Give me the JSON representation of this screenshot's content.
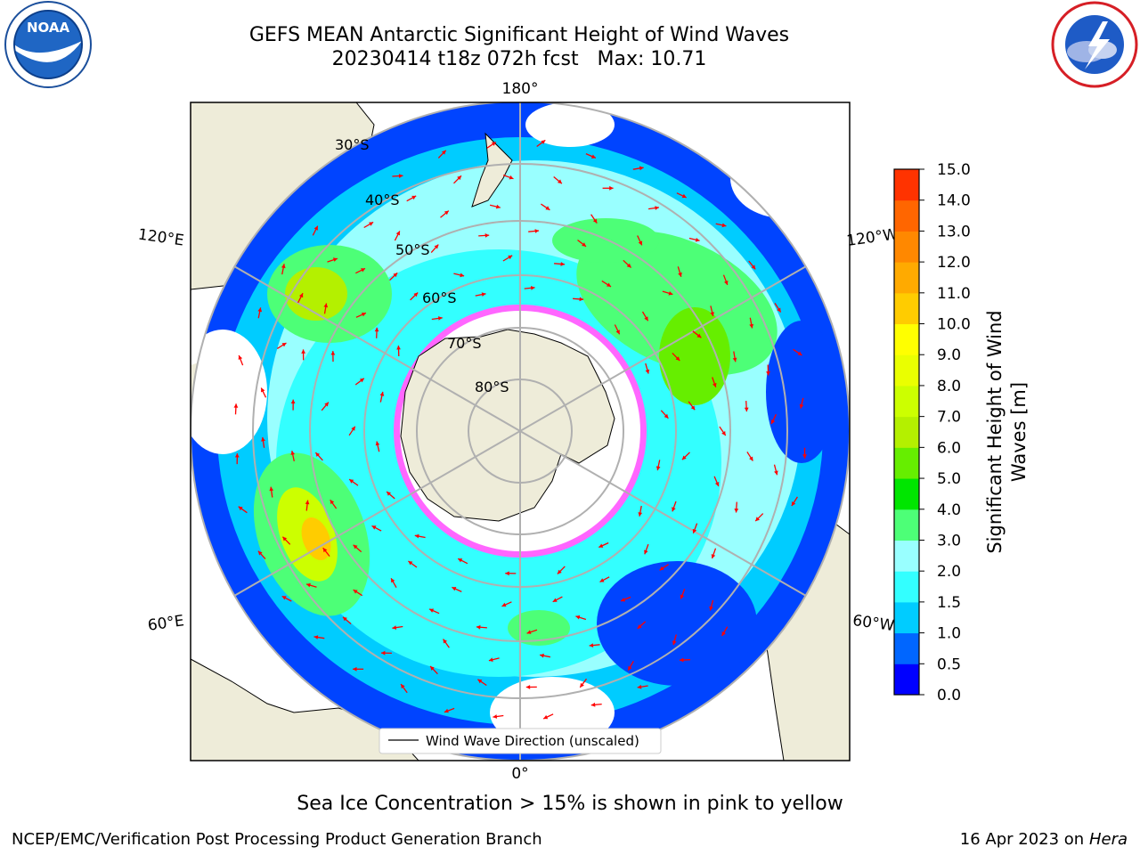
{
  "title": {
    "line1": "GEFS MEAN Antarctic Significant Height of Wind Waves",
    "line2": "20230414 t18z 072h fcst   Max: 10.71"
  },
  "logos": {
    "noaa": {
      "text": "NOAA",
      "icon": "noaa-logo-icon"
    },
    "nws": {
      "icon": "national-weather-service-logo-icon"
    }
  },
  "map": {
    "projection": "south-polar-stereographic",
    "longitude_labels": [
      "180°",
      "120°E",
      "120°W",
      "60°E",
      "60°W",
      "0°"
    ],
    "latitude_labels": [
      "30°S",
      "40°S",
      "50°S",
      "60°S",
      "70°S",
      "80°S"
    ],
    "legend_label": "Wind Wave Direction (unscaled)",
    "colors": {
      "land": "#eeecd9",
      "sea_ice": "#ff66ff",
      "vector": "#ff0000",
      "grid": "#b0b0b0"
    }
  },
  "colorbar": {
    "label_line1": "Significant Height of Wind",
    "label_line2": "Waves [m]",
    "ticks": [
      "0.0",
      "0.5",
      "1.0",
      "1.5",
      "2.0",
      "3.0",
      "4.0",
      "5.0",
      "6.0",
      "7.0",
      "8.0",
      "9.0",
      "10.0",
      "11.0",
      "12.0",
      "13.0",
      "14.0",
      "15.0"
    ],
    "colors": [
      "#0000ff",
      "#0066ff",
      "#00ccff",
      "#33ffff",
      "#99ffff",
      "#4dff77",
      "#00e600",
      "#66ee00",
      "#b4f000",
      "#ccff00",
      "#eaff00",
      "#ffff00",
      "#ffcc00",
      "#ffaa00",
      "#ff8800",
      "#ff6600",
      "#ff3300",
      "#ff0000"
    ]
  },
  "caption": "Sea Ice Concentration > 15% is shown in pink to yellow",
  "footer": {
    "left": "NCEP/EMC/Verification Post Processing Product Generation Branch",
    "right_date": "16 Apr 2023 on ",
    "right_host": "Hera"
  }
}
